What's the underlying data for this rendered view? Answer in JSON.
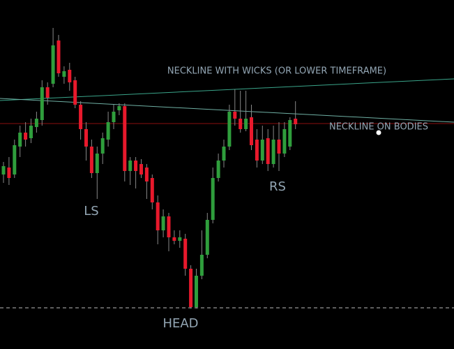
{
  "chart_data": {
    "type": "candlestick",
    "open": [
      250,
      260,
      250,
      290,
      310,
      302,
      318,
      328,
      375,
      380,
      442,
      390,
      400,
      385,
      350,
      315,
      290,
      252,
      280,
      300,
      325,
      342,
      348,
      255,
      270,
      265,
      260,
      245,
      210,
      170,
      190,
      160,
      155,
      158,
      115,
      60,
      105,
      135,
      185,
      245,
      270,
      290,
      340,
      330,
      315,
      332,
      300,
      270,
      302,
      265,
      300,
      280,
      290,
      330
    ],
    "close": [
      262,
      245,
      292,
      310,
      300,
      320,
      330,
      375,
      360,
      435,
      395,
      398,
      382,
      350,
      315,
      290,
      252,
      280,
      302,
      325,
      340,
      348,
      255,
      270,
      255,
      250,
      240,
      210,
      170,
      190,
      160,
      155,
      160,
      115,
      60,
      105,
      135,
      185,
      245,
      270,
      290,
      340,
      330,
      315,
      330,
      292,
      270,
      300,
      265,
      300,
      280,
      315,
      328,
      322
    ],
    "high": [
      268,
      275,
      300,
      320,
      325,
      330,
      340,
      385,
      382,
      460,
      450,
      405,
      410,
      390,
      355,
      325,
      300,
      290,
      310,
      340,
      350,
      352,
      352,
      275,
      275,
      272,
      265,
      250,
      220,
      200,
      195,
      170,
      170,
      165,
      120,
      115,
      170,
      195,
      260,
      280,
      300,
      350,
      372,
      370,
      370,
      350,
      315,
      320,
      315,
      320,
      325,
      325,
      332,
      355
    ],
    "low": [
      238,
      235,
      245,
      275,
      290,
      295,
      310,
      320,
      350,
      375,
      390,
      380,
      370,
      345,
      300,
      270,
      245,
      215,
      265,
      290,
      315,
      335,
      240,
      235,
      230,
      245,
      215,
      200,
      150,
      160,
      140,
      150,
      145,
      105,
      58,
      58,
      100,
      130,
      180,
      240,
      260,
      285,
      320,
      310,
      312,
      285,
      260,
      265,
      255,
      260,
      255,
      275,
      285,
      315
    ],
    "up_color": "#2f9e3c",
    "down_color": "#e8192c",
    "ylim": [
      0,
      500
    ],
    "annotations": [
      "NECKLINE WITH WICKS (OR LOWER TIMEFRAME)",
      "NECKLINE ON BODIES",
      "LS",
      "HEAD",
      "RS"
    ]
  }
}
